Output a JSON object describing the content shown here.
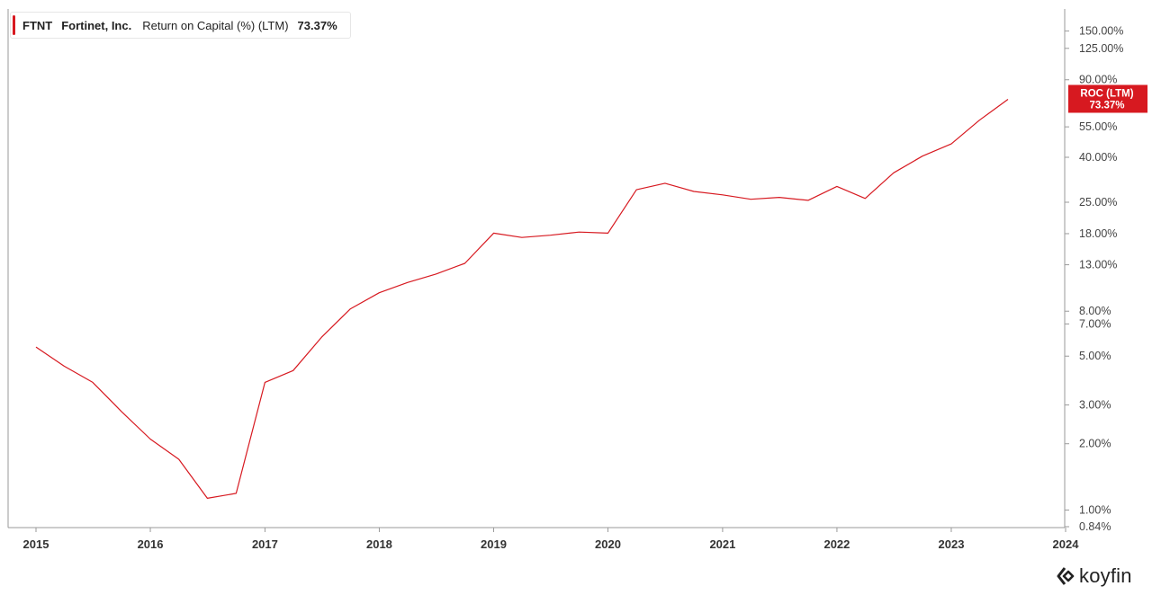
{
  "legend": {
    "ticker": "FTNT",
    "company": "Fortinet, Inc.",
    "metric": "Return on Capital (%) (LTM)",
    "value": "73.37%"
  },
  "badge": {
    "label": "ROC (LTM)",
    "value": "73.37%"
  },
  "logo": {
    "text": "koyfin"
  },
  "colors": {
    "series": "#d71920",
    "badge_bg": "#d71920",
    "axis": "#9a9a9a"
  },
  "chart_data": {
    "type": "line",
    "y_scale": "log",
    "ylim": [
      0.84,
      175
    ],
    "xlim": [
      "2015-01-01",
      "2024-01-01"
    ],
    "y_ticks": [
      {
        "value": 150,
        "label": "150.00%"
      },
      {
        "value": 125,
        "label": "125.00%"
      },
      {
        "value": 90,
        "label": "90.00%"
      },
      {
        "value": 55,
        "label": "55.00%"
      },
      {
        "value": 40,
        "label": "40.00%"
      },
      {
        "value": 25,
        "label": "25.00%"
      },
      {
        "value": 18,
        "label": "18.00%"
      },
      {
        "value": 13,
        "label": "13.00%"
      },
      {
        "value": 8,
        "label": "8.00%"
      },
      {
        "value": 7,
        "label": "7.00%"
      },
      {
        "value": 5,
        "label": "5.00%"
      },
      {
        "value": 3,
        "label": "3.00%"
      },
      {
        "value": 2,
        "label": "2.00%"
      },
      {
        "value": 1,
        "label": "1.00%"
      },
      {
        "value": 0.84,
        "label": "0.84%"
      }
    ],
    "x_ticks": [
      {
        "value": "2015-01-01",
        "label": "2015"
      },
      {
        "value": "2016-01-01",
        "label": "2016"
      },
      {
        "value": "2017-01-01",
        "label": "2017"
      },
      {
        "value": "2018-01-01",
        "label": "2018"
      },
      {
        "value": "2019-01-01",
        "label": "2019"
      },
      {
        "value": "2020-01-01",
        "label": "2020"
      },
      {
        "value": "2021-01-01",
        "label": "2021"
      },
      {
        "value": "2022-01-01",
        "label": "2022"
      },
      {
        "value": "2023-01-01",
        "label": "2023"
      },
      {
        "value": "2024-01-01",
        "label": "2024"
      }
    ],
    "series": [
      {
        "points": [
          {
            "x": "2015-01-01",
            "y": 5.5
          },
          {
            "x": "2015-04-01",
            "y": 4.5
          },
          {
            "x": "2015-07-01",
            "y": 3.8
          },
          {
            "x": "2015-10-01",
            "y": 2.8
          },
          {
            "x": "2016-01-01",
            "y": 2.1
          },
          {
            "x": "2016-04-01",
            "y": 1.7
          },
          {
            "x": "2016-07-01",
            "y": 1.13
          },
          {
            "x": "2016-10-01",
            "y": 1.19
          },
          {
            "x": "2017-01-01",
            "y": 3.8
          },
          {
            "x": "2017-04-01",
            "y": 4.3
          },
          {
            "x": "2017-07-01",
            "y": 6.1
          },
          {
            "x": "2017-10-01",
            "y": 8.2
          },
          {
            "x": "2018-01-01",
            "y": 9.7
          },
          {
            "x": "2018-04-01",
            "y": 10.8
          },
          {
            "x": "2018-07-01",
            "y": 11.8
          },
          {
            "x": "2018-10-01",
            "y": 13.2
          },
          {
            "x": "2019-01-01",
            "y": 18.1
          },
          {
            "x": "2019-04-01",
            "y": 17.3
          },
          {
            "x": "2019-07-01",
            "y": 17.7
          },
          {
            "x": "2019-10-01",
            "y": 18.3
          },
          {
            "x": "2020-01-01",
            "y": 18.1
          },
          {
            "x": "2020-04-01",
            "y": 28.5
          },
          {
            "x": "2020-07-01",
            "y": 30.5
          },
          {
            "x": "2020-10-01",
            "y": 28.0
          },
          {
            "x": "2021-01-01",
            "y": 27.0
          },
          {
            "x": "2021-04-01",
            "y": 25.8
          },
          {
            "x": "2021-07-01",
            "y": 26.3
          },
          {
            "x": "2021-10-01",
            "y": 25.5
          },
          {
            "x": "2022-01-01",
            "y": 29.5
          },
          {
            "x": "2022-04-01",
            "y": 26.0
          },
          {
            "x": "2022-07-01",
            "y": 34.0
          },
          {
            "x": "2022-10-01",
            "y": 40.5
          },
          {
            "x": "2023-01-01",
            "y": 46.0
          },
          {
            "x": "2023-04-01",
            "y": 59.0
          },
          {
            "x": "2023-07-01",
            "y": 73.37
          }
        ]
      }
    ]
  }
}
